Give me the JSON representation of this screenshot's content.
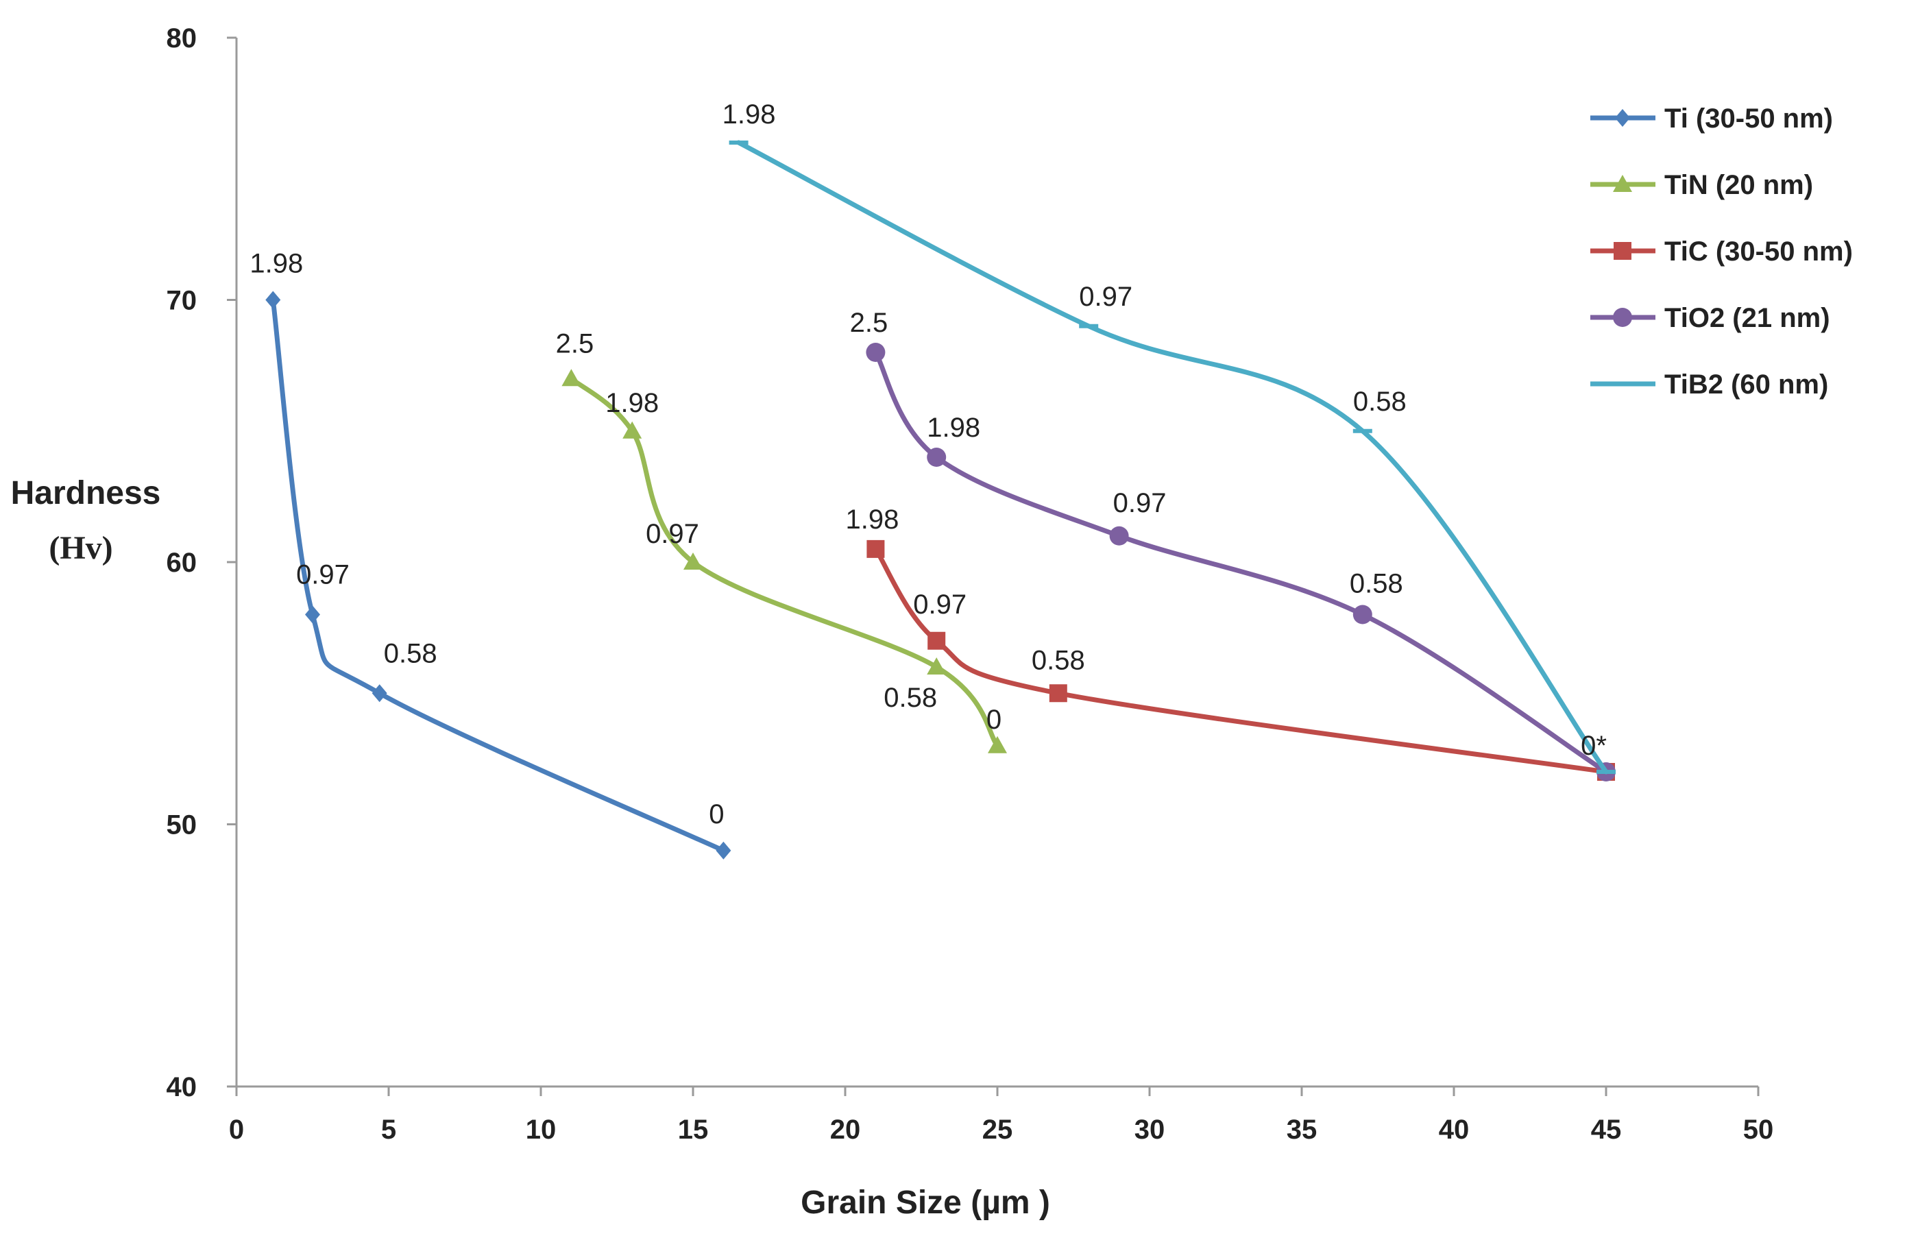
{
  "chart_data": {
    "type": "line",
    "title": "",
    "xlabel": "Grain Size  (µm )",
    "ylabel": [
      "Hardness",
      "(Hv)"
    ],
    "xlim": [
      0,
      50
    ],
    "ylim": [
      40,
      80
    ],
    "xticks": [
      "0",
      "5",
      "10",
      "15",
      "20",
      "25",
      "30",
      "35",
      "40",
      "45",
      "50"
    ],
    "yticks": [
      "40",
      "50",
      "60",
      "70",
      "80"
    ],
    "grid": false,
    "legend_position": "top-right",
    "series": [
      {
        "name": "Ti (30-50 nm)",
        "color": "#4a7ebb",
        "marker": "diamond",
        "points": [
          {
            "x": 1.2,
            "y": 70,
            "label": "1.98"
          },
          {
            "x": 2.5,
            "y": 58,
            "label": "0.97"
          },
          {
            "x": 4.7,
            "y": 55,
            "label": "0.58"
          },
          {
            "x": 16,
            "y": 49,
            "label": "0"
          }
        ]
      },
      {
        "name": "TiN (20 nm)",
        "color": "#98b954",
        "marker": "triangle",
        "points": [
          {
            "x": 11,
            "y": 67,
            "label": "2.5"
          },
          {
            "x": 13,
            "y": 65,
            "label": "1.98"
          },
          {
            "x": 15,
            "y": 60,
            "label": "0.97"
          },
          {
            "x": 23,
            "y": 56,
            "label": "0.58"
          },
          {
            "x": 25,
            "y": 53,
            "label": "0"
          }
        ]
      },
      {
        "name": "TiC (30-50 nm)",
        "color": "#be4b48",
        "marker": "square",
        "points": [
          {
            "x": 21,
            "y": 60.5,
            "label": "1.98"
          },
          {
            "x": 23,
            "y": 57,
            "label": "0.97"
          },
          {
            "x": 27,
            "y": 55,
            "label": "0.58"
          },
          {
            "x": 45,
            "y": 52,
            "label": ""
          }
        ]
      },
      {
        "name": "TiO2 (21 nm)",
        "color": "#7d60a0",
        "marker": "circle",
        "points": [
          {
            "x": 21,
            "y": 68,
            "label": "2.5"
          },
          {
            "x": 23,
            "y": 64,
            "label": "1.98"
          },
          {
            "x": 29,
            "y": 61,
            "label": "0.97"
          },
          {
            "x": 37,
            "y": 58,
            "label": "0.58"
          },
          {
            "x": 45,
            "y": 52,
            "label": ""
          }
        ]
      },
      {
        "name": "TiB2 (60 nm)",
        "color": "#4bacc6",
        "marker": "dash",
        "points": [
          {
            "x": 16.5,
            "y": 76,
            "label": "1.98"
          },
          {
            "x": 28,
            "y": 69,
            "label": "0.97"
          },
          {
            "x": 37,
            "y": 65,
            "label": "0.58"
          },
          {
            "x": 45,
            "y": 52,
            "label": "0*"
          }
        ]
      }
    ]
  }
}
